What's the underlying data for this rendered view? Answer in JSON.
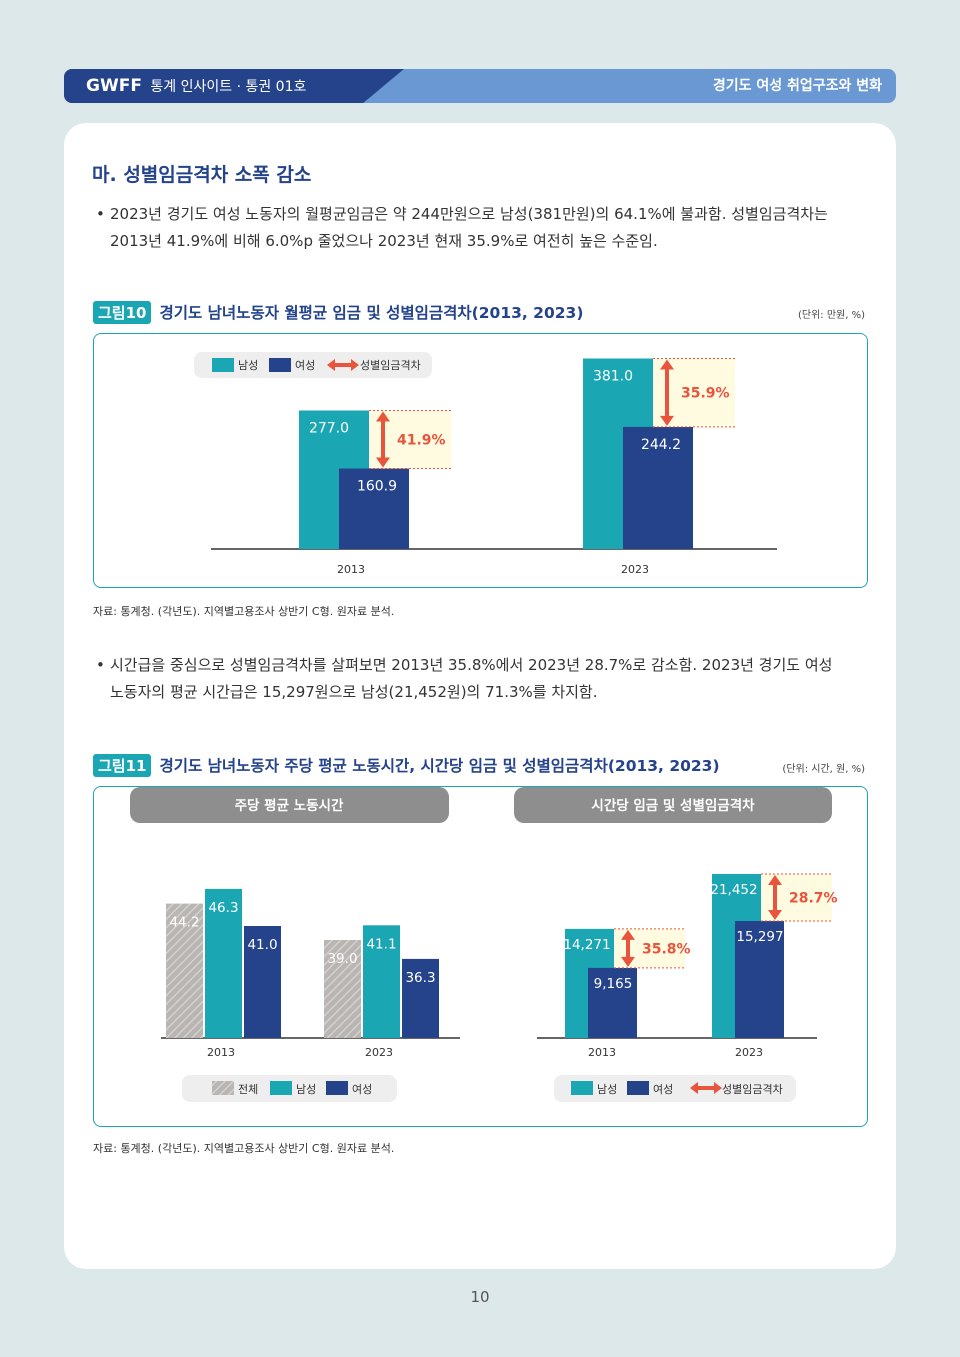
{
  "header": {
    "logo": "GWFF",
    "series": "통계 인사이트 · 통권 01호",
    "topic": "경기도 여성 취업구조와 변화"
  },
  "section_title": "마. 성별임금격차 소폭 감소",
  "para1": {
    "line1": "2023년 경기도 여성 노동자의 월평균임금은 약 244만원으로 남성(381만원)의 64.1%에 불과함. 성별임금격차는",
    "line2": "2013년 41.9%에 비해 6.0%p 줄었으나 2023년 현재 35.9%로 여전히 높은 수준임."
  },
  "para2": {
    "line1": "시간급을 중심으로 성별임금격차를 살펴보면 2013년 35.8%에서 2023년 28.7%로 감소함. 2023년 경기도 여성",
    "line2": "노동자의 평균 시간급은 15,297원으로 남성(21,452원)의 71.3%를 차지함."
  },
  "fig10": {
    "badge": "그림10",
    "title": "경기도 남녀노동자 월평균 임금 및 성별임금격차(2013, 2023)",
    "unit": "(단위: 만원, %)",
    "source": "자료: 통계청. (각년도). 지역별고용조사 상반기 C형. 원자료 분석."
  },
  "fig11": {
    "badge": "그림11",
    "title": "경기도 남녀노동자 주당 평균 노동시간, 시간당 임금 및 성별임금격차(2013, 2023)",
    "unit": "(단위: 시간, 원, %)",
    "source": "자료: 통계청. (각년도). 지역별고용조사 상반기 C형. 원자료 분석.",
    "panel_left": "주당 평균 노동시간",
    "panel_right": "시간당 임금 및 성별임금격차"
  },
  "page_number": "10",
  "colors": {
    "male": "#1ba6b4",
    "female": "#24438a",
    "total": "#b0aeac",
    "gap_arrow": "#e9543d",
    "gap_text": "#e9543d",
    "gap_fill": "#fffbe0"
  },
  "chart_data": [
    {
      "type": "bar",
      "categories": [
        "2013",
        "2023"
      ],
      "series": [
        {
          "name": "남성",
          "values": [
            277.0,
            381.0
          ]
        },
        {
          "name": "여성",
          "values": [
            160.9,
            244.2
          ]
        }
      ],
      "gap": {
        "name": "성별임금격차",
        "values": [
          "41.9%",
          "35.9%"
        ]
      },
      "value_labels": {
        "male": [
          "277.0",
          "381.0"
        ],
        "female": [
          "160.9",
          "244.2"
        ]
      },
      "legend": "top-left",
      "ylim": [
        0,
        400
      ]
    },
    {
      "type": "bar",
      "categories": [
        "2013",
        "2023"
      ],
      "series": [
        {
          "name": "전체",
          "values": [
            44.2,
            39.0
          ]
        },
        {
          "name": "남성",
          "values": [
            46.3,
            41.1
          ]
        },
        {
          "name": "여성",
          "values": [
            41.0,
            36.3
          ]
        }
      ],
      "value_labels": {
        "total": [
          "44.2",
          "39.0"
        ],
        "male": [
          "46.3",
          "41.1"
        ],
        "female": [
          "41.0",
          "36.3"
        ]
      },
      "legend": "bottom",
      "ylim": [
        25,
        50
      ]
    },
    {
      "type": "bar",
      "categories": [
        "2013",
        "2023"
      ],
      "series": [
        {
          "name": "남성",
          "values": [
            14271,
            21452
          ]
        },
        {
          "name": "여성",
          "values": [
            9165,
            15297
          ]
        }
      ],
      "gap": {
        "name": "성별임금격차",
        "values": [
          "35.8%",
          "28.7%"
        ]
      },
      "value_labels": {
        "male": [
          "14,271",
          "21,452"
        ],
        "female": [
          "9,165",
          "15,297"
        ]
      },
      "legend": "bottom",
      "ylim": [
        0,
        25500
      ]
    }
  ]
}
